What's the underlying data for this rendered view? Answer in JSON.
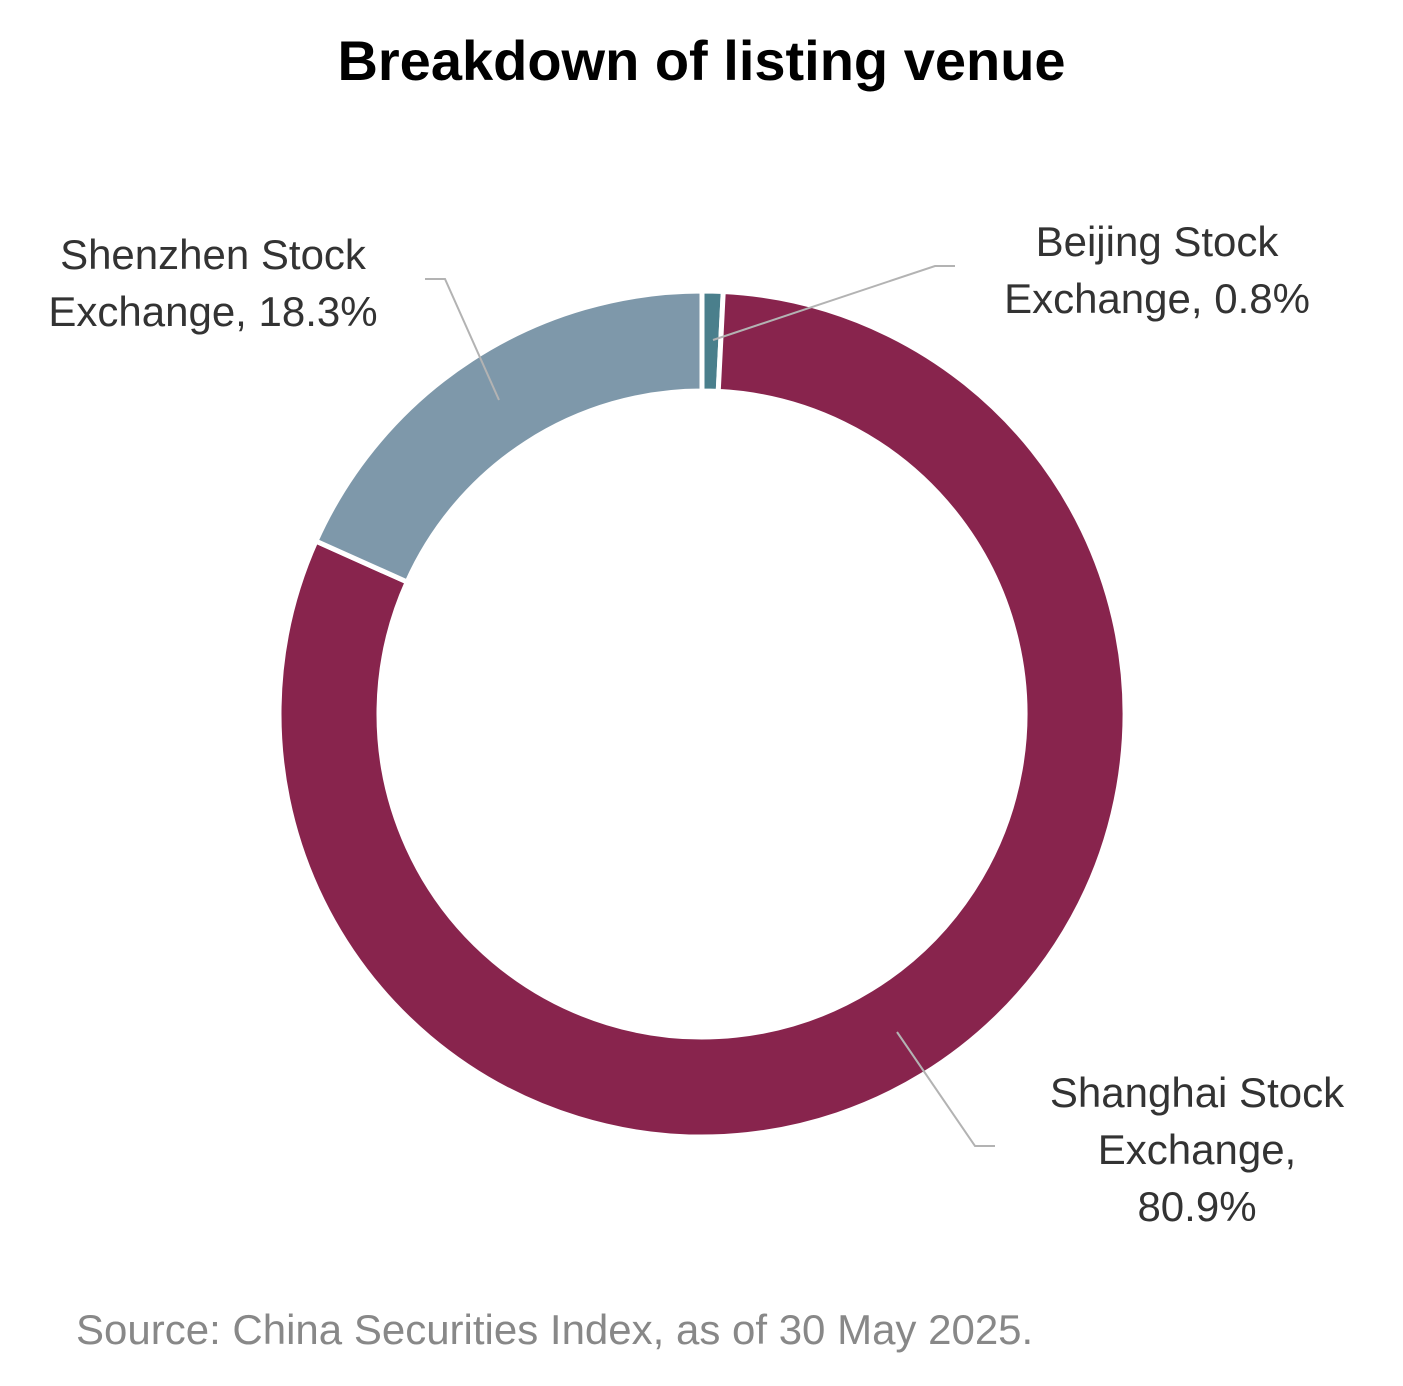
{
  "chart_data": {
    "type": "pie",
    "donut": true,
    "title": "Breakdown of listing venue",
    "source": "Source: China Securities Index, as of 30 May 2025.",
    "slices": [
      {
        "name": "Beijing Stock Exchange",
        "value": 0.8,
        "color": "#4a7f8c",
        "label_lines": [
          "Beijing Stock",
          "Exchange, 0.8%"
        ]
      },
      {
        "name": "Shanghai Stock Exchange",
        "value": 80.9,
        "color": "#88244d",
        "label_lines": [
          "Shanghai Stock",
          "Exchange,",
          "80.9%"
        ]
      },
      {
        "name": "Shenzhen Stock Exchange",
        "value": 18.3,
        "color": "#7e98aa",
        "label_lines": [
          "Shenzhen Stock",
          "Exchange, 18.3%"
        ]
      }
    ],
    "start_angle_deg": 0,
    "direction": "clockwise",
    "legend": "none"
  }
}
